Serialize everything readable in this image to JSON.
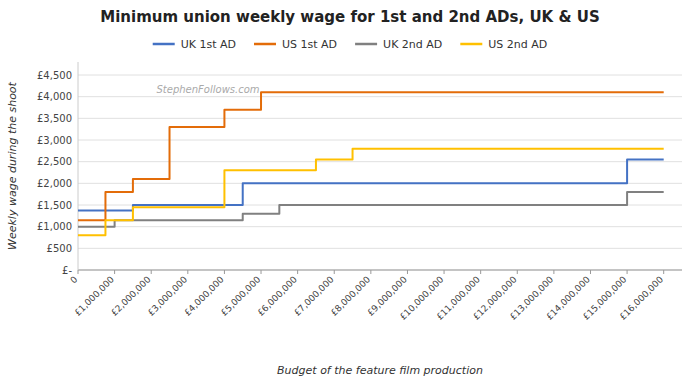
{
  "chart_data": {
    "type": "line",
    "title": "Minimum union weekly wage for 1st and 2nd ADs, UK & US",
    "xlabel": "Budget of the feature film production",
    "ylabel": "Weekly wage during the shoot",
    "annotations": [
      "StephenFollows.com"
    ],
    "series": [
      {
        "name": "UK 1st AD",
        "color": "#4472C4",
        "x": [
          0,
          1500000,
          1500000,
          2000000,
          2000000,
          4500000,
          4500000,
          5500000,
          5500000,
          15000000,
          15000000,
          16000000
        ],
        "values": [
          1375,
          1375,
          1500,
          1500,
          1500,
          1500,
          2000,
          2000,
          2000,
          2000,
          2550,
          2550
        ]
      },
      {
        "name": "US 1st AD",
        "color": "#E36C09",
        "x": [
          0,
          750000,
          750000,
          1500000,
          1500000,
          2500000,
          2500000,
          4000000,
          4000000,
          5000000,
          5000000,
          7500000,
          7500000,
          16000000
        ],
        "values": [
          1150,
          1150,
          1800,
          1800,
          2100,
          2100,
          3300,
          3300,
          3700,
          3700,
          4100,
          4100,
          4100,
          4100
        ]
      },
      {
        "name": "UK 2nd AD",
        "color": "#808080",
        "x": [
          0,
          1000000,
          1000000,
          4500000,
          4500000,
          5500000,
          5500000,
          15000000,
          15000000,
          16000000
        ],
        "values": [
          1000,
          1000,
          1150,
          1150,
          1300,
          1300,
          1500,
          1500,
          1800,
          1800
        ]
      },
      {
        "name": "US 2nd AD",
        "color": "#FFC000",
        "x": [
          0,
          750000,
          750000,
          1500000,
          1500000,
          4000000,
          4000000,
          6500000,
          6500000,
          7500000,
          7500000,
          9000000,
          9000000,
          16000000
        ],
        "values": [
          800,
          800,
          1150,
          1150,
          1450,
          1450,
          2300,
          2300,
          2550,
          2550,
          2800,
          2800,
          2800,
          2800
        ]
      }
    ],
    "xlim": [
      0,
      16500000
    ],
    "xticks": [
      0,
      {
        "value": 1000000,
        "label": "£1,000,000"
      },
      {
        "value": 2000000,
        "label": "£2,000,000"
      },
      {
        "value": 3000000,
        "label": "£3,000,000"
      },
      {
        "value": 4000000,
        "label": "£4,000,000"
      },
      {
        "value": 5000000,
        "label": "£5,000,000"
      },
      {
        "value": 6000000,
        "label": "£6,000,000"
      },
      {
        "value": 7000000,
        "label": "£7,000,000"
      },
      {
        "value": 8000000,
        "label": "£8,000,000"
      },
      {
        "value": 9000000,
        "label": "£9,000,000"
      },
      {
        "value": 10000000,
        "label": "£10,000,000"
      },
      {
        "value": 11000000,
        "label": "£11,000,000"
      },
      {
        "value": 12000000,
        "label": "£12,000,000"
      },
      {
        "value": 13000000,
        "label": "£13,000,000"
      },
      {
        "value": 14000000,
        "label": "£14,000,000"
      },
      {
        "value": 15000000,
        "label": "£15,000,000"
      },
      {
        "value": 16000000,
        "label": "£16,000,000"
      }
    ],
    "ylim": [
      0,
      4800
    ],
    "yticks": [
      {
        "value": 0,
        "label": "£-"
      },
      {
        "value": 500,
        "label": "£500"
      },
      {
        "value": 1000,
        "label": "£1,000"
      },
      {
        "value": 1500,
        "label": "£1,500"
      },
      {
        "value": 2000,
        "label": "£2,000"
      },
      {
        "value": 2500,
        "label": "£2,500"
      },
      {
        "value": 3000,
        "label": "£3,000"
      },
      {
        "value": 3500,
        "label": "£3,500"
      },
      {
        "value": 4000,
        "label": "£4,000"
      },
      {
        "value": 4500,
        "label": "£4,500"
      }
    ],
    "grid": "y",
    "legend": "top"
  }
}
